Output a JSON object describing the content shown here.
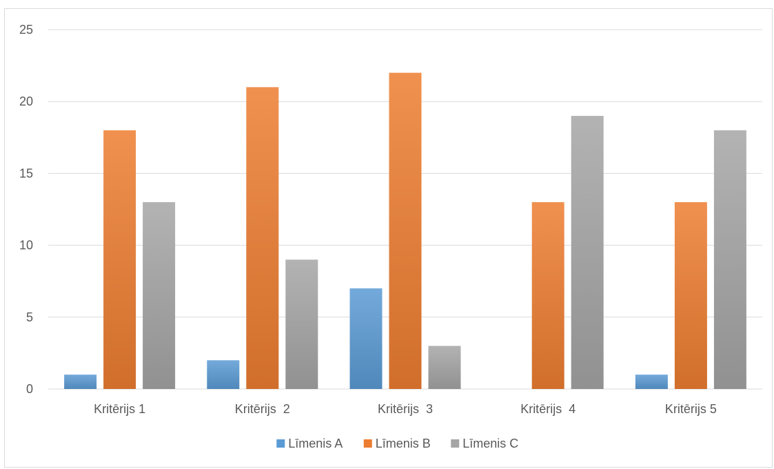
{
  "chart_data": {
    "type": "bar",
    "categories": [
      "Kritērijs 1",
      "Kritērijs  2",
      "Kritērijs  3",
      "Kritērijs  4",
      "Kritērijs 5"
    ],
    "series": [
      {
        "name": "Līmenis A",
        "values": [
          1,
          2,
          7,
          0,
          1
        ],
        "color": "#5b9bd5"
      },
      {
        "name": "Līmenis B",
        "values": [
          18,
          21,
          22,
          13,
          13
        ],
        "color": "#ed7d31"
      },
      {
        "name": "Līmenis C",
        "values": [
          13,
          9,
          3,
          19,
          18
        ],
        "color": "#a5a5a5"
      }
    ],
    "ylim": [
      0,
      25
    ],
    "yticks": [
      0,
      5,
      10,
      15,
      20,
      25
    ],
    "grid": true,
    "legend_position": "bottom",
    "title": "",
    "xlabel": "",
    "ylabel": ""
  }
}
